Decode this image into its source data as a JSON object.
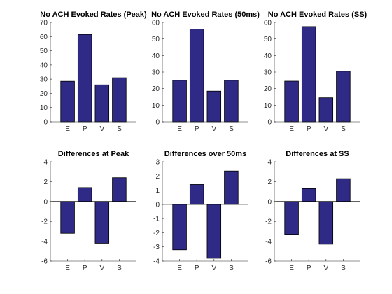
{
  "figure": {
    "background": "#ffffff",
    "bar_color": "#2e2a85",
    "edge_color": "#000000"
  },
  "chart_data": [
    {
      "type": "bar",
      "title": "No ACH Evoked Rates (Peak)",
      "categories": [
        "E",
        "P",
        "V",
        "S"
      ],
      "values": [
        28.5,
        61.5,
        26,
        31
      ],
      "ylim": [
        0,
        70
      ],
      "yticks": [
        0,
        10,
        20,
        30,
        40,
        50,
        60,
        70
      ],
      "xlim": [
        0,
        5
      ],
      "xlabel": "",
      "ylabel": "",
      "grid": false
    },
    {
      "type": "bar",
      "title": "No ACH Evoked Rates (50ms)",
      "categories": [
        "E",
        "P",
        "V",
        "S"
      ],
      "values": [
        25,
        56,
        18.5,
        25
      ],
      "ylim": [
        0,
        60
      ],
      "yticks": [
        0,
        10,
        20,
        30,
        40,
        50,
        60
      ],
      "xlim": [
        0,
        5
      ],
      "xlabel": "",
      "ylabel": "",
      "grid": false
    },
    {
      "type": "bar",
      "title": "No ACH Evoked Rates (SS)",
      "categories": [
        "E",
        "P",
        "V",
        "S"
      ],
      "values": [
        24.5,
        57.5,
        14.5,
        30.5
      ],
      "ylim": [
        0,
        60
      ],
      "yticks": [
        0,
        10,
        20,
        30,
        40,
        50,
        60
      ],
      "xlim": [
        0,
        5
      ],
      "xlabel": "",
      "ylabel": "",
      "grid": false
    },
    {
      "type": "bar",
      "title": "Differences at Peak",
      "categories": [
        "E",
        "P",
        "V",
        "S"
      ],
      "values": [
        -3.2,
        1.4,
        -4.2,
        2.4
      ],
      "ylim": [
        -6,
        4
      ],
      "yticks": [
        -6,
        -4,
        -2,
        0,
        2,
        4
      ],
      "xlim": [
        0,
        5
      ],
      "xlabel": "",
      "ylabel": "",
      "grid": false
    },
    {
      "type": "bar",
      "title": "Differences over 50ms",
      "categories": [
        "E",
        "P",
        "V",
        "S"
      ],
      "values": [
        -3.2,
        1.4,
        -3.8,
        2.35
      ],
      "ylim": [
        -4,
        3
      ],
      "yticks": [
        -4,
        -3,
        -2,
        -1,
        0,
        1,
        2,
        3
      ],
      "xlim": [
        0,
        5
      ],
      "xlabel": "",
      "ylabel": "",
      "grid": false
    },
    {
      "type": "bar",
      "title": "Differences at SS",
      "categories": [
        "E",
        "P",
        "V",
        "S"
      ],
      "values": [
        -3.3,
        1.3,
        -4.3,
        2.3
      ],
      "ylim": [
        -6,
        4
      ],
      "yticks": [
        -6,
        -4,
        -2,
        0,
        2,
        4
      ],
      "xlim": [
        0,
        5
      ],
      "xlabel": "",
      "ylabel": "",
      "grid": false
    }
  ]
}
